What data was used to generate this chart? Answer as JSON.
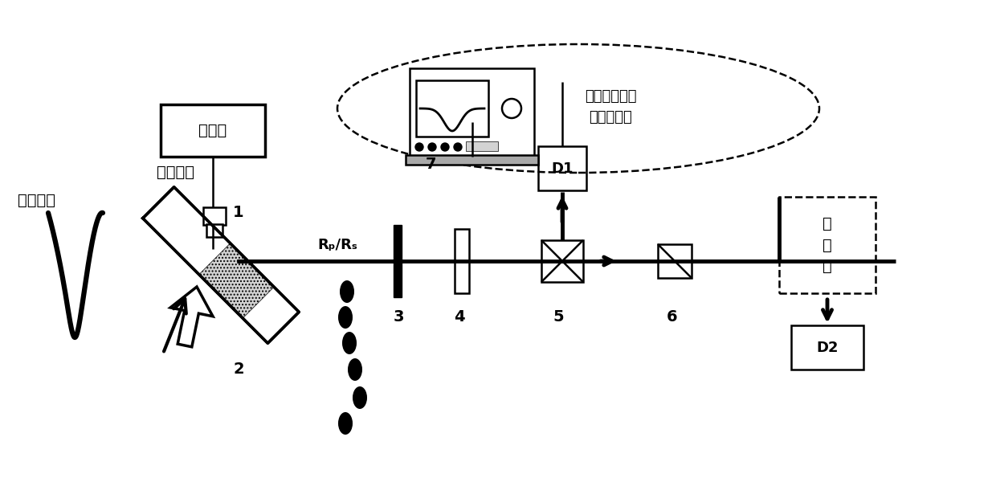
{
  "bg_color": "#ffffff",
  "labels": {
    "gamma_pulse": "伽马脉冲",
    "probe_laser": "探针激光",
    "laser_device": "激光器",
    "rp_rs": "Rₚ/Rₛ",
    "label1": "1",
    "label2": "2",
    "label3": "3",
    "label4": "4",
    "label5": "5",
    "label6": "6",
    "label7": "7",
    "d1": "D1",
    "d2": "D2",
    "image_transfer": "像\n传\n递",
    "measurement_system": "激光脉冲测量\n与记录系统"
  }
}
